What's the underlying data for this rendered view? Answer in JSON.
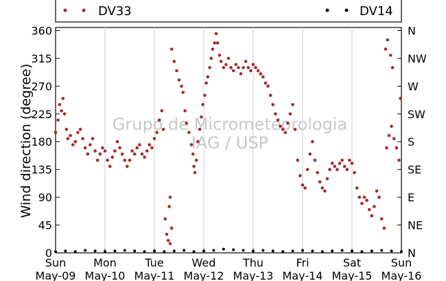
{
  "chart_data": {
    "type": "scatter",
    "title": "",
    "xlabel": "",
    "ylabel": "Wind direction (degree)",
    "ylim": [
      0,
      365
    ],
    "yticks": [
      0,
      45,
      90,
      135,
      180,
      225,
      270,
      315,
      360
    ],
    "y2_ticks": [
      {
        "value": 0,
        "label": "N"
      },
      {
        "value": 45,
        "label": "NE"
      },
      {
        "value": 90,
        "label": "E"
      },
      {
        "value": 135,
        "label": "SE"
      },
      {
        "value": 180,
        "label": "S"
      },
      {
        "value": 225,
        "label": "SW"
      },
      {
        "value": 270,
        "label": "W"
      },
      {
        "value": 315,
        "label": "NW"
      },
      {
        "value": 360,
        "label": "N"
      }
    ],
    "x_ticks": [
      {
        "day": "Sun",
        "date": "May-09"
      },
      {
        "day": "Mon",
        "date": "May-10"
      },
      {
        "day": "Tue",
        "date": "May-11"
      },
      {
        "day": "Wed",
        "date": "May-12"
      },
      {
        "day": "Thu",
        "date": "May-13"
      },
      {
        "day": "Fri",
        "date": "May-14"
      },
      {
        "day": "Sat",
        "date": "May-15"
      },
      {
        "day": "Sun",
        "date": "May-16"
      }
    ],
    "xlim_days": [
      0,
      7
    ],
    "grid": "vertical",
    "legend": "top",
    "watermark_lines": [
      "Grupo de Micrometeorologia",
      "IAG / USP"
    ],
    "series": [
      {
        "name": "DV33",
        "color": "#a52a2a",
        "points": [
          [
            0.0,
            195
          ],
          [
            0.05,
            215
          ],
          [
            0.08,
            240
          ],
          [
            0.12,
            230
          ],
          [
            0.15,
            250
          ],
          [
            0.18,
            225
          ],
          [
            0.22,
            200
          ],
          [
            0.25,
            185
          ],
          [
            0.3,
            190
          ],
          [
            0.35,
            175
          ],
          [
            0.4,
            180
          ],
          [
            0.45,
            195
          ],
          [
            0.5,
            200
          ],
          [
            0.55,
            185
          ],
          [
            0.6,
            170
          ],
          [
            0.65,
            160
          ],
          [
            0.7,
            175
          ],
          [
            0.75,
            185
          ],
          [
            0.8,
            165
          ],
          [
            0.85,
            150
          ],
          [
            0.9,
            160
          ],
          [
            0.95,
            170
          ],
          [
            1.0,
            165
          ],
          [
            1.05,
            150
          ],
          [
            1.1,
            140
          ],
          [
            1.15,
            155
          ],
          [
            1.2,
            165
          ],
          [
            1.25,
            180
          ],
          [
            1.3,
            170
          ],
          [
            1.35,
            160
          ],
          [
            1.4,
            150
          ],
          [
            1.45,
            140
          ],
          [
            1.5,
            150
          ],
          [
            1.55,
            165
          ],
          [
            1.6,
            160
          ],
          [
            1.65,
            170
          ],
          [
            1.7,
            175
          ],
          [
            1.75,
            160
          ],
          [
            1.8,
            155
          ],
          [
            1.85,
            165
          ],
          [
            1.9,
            175
          ],
          [
            1.95,
            170
          ],
          [
            2.0,
            185
          ],
          [
            2.05,
            195
          ],
          [
            2.1,
            215
          ],
          [
            2.15,
            230
          ],
          [
            2.18,
            200
          ],
          [
            2.22,
            55
          ],
          [
            2.25,
            30
          ],
          [
            2.28,
            20
          ],
          [
            2.32,
            15
          ],
          [
            2.35,
            40
          ],
          [
            2.3,
            75
          ],
          [
            2.32,
            90
          ],
          [
            2.35,
            330
          ],
          [
            2.4,
            310
          ],
          [
            2.45,
            295
          ],
          [
            2.5,
            280
          ],
          [
            2.55,
            270
          ],
          [
            2.58,
            260
          ],
          [
            2.62,
            230
          ],
          [
            2.65,
            210
          ],
          [
            2.7,
            195
          ],
          [
            2.75,
            175
          ],
          [
            2.78,
            160
          ],
          [
            2.8,
            140
          ],
          [
            2.82,
            130
          ],
          [
            2.85,
            150
          ],
          [
            2.88,
            180
          ],
          [
            2.92,
            200
          ],
          [
            2.95,
            220
          ],
          [
            2.98,
            240
          ],
          [
            3.02,
            255
          ],
          [
            3.05,
            275
          ],
          [
            3.08,
            285
          ],
          [
            3.12,
            300
          ],
          [
            3.15,
            315
          ],
          [
            3.18,
            330
          ],
          [
            3.22,
            340
          ],
          [
            3.25,
            355
          ],
          [
            3.28,
            340
          ],
          [
            3.32,
            320
          ],
          [
            3.35,
            310
          ],
          [
            3.4,
            300
          ],
          [
            3.45,
            305
          ],
          [
            3.5,
            315
          ],
          [
            3.55,
            300
          ],
          [
            3.6,
            295
          ],
          [
            3.65,
            305
          ],
          [
            3.7,
            300
          ],
          [
            3.75,
            290
          ],
          [
            3.8,
            300
          ],
          [
            3.85,
            310
          ],
          [
            3.9,
            300
          ],
          [
            3.95,
            295
          ],
          [
            4.0,
            305
          ],
          [
            4.05,
            300
          ],
          [
            4.1,
            295
          ],
          [
            4.15,
            290
          ],
          [
            4.2,
            285
          ],
          [
            4.25,
            275
          ],
          [
            4.3,
            270
          ],
          [
            4.35,
            255
          ],
          [
            4.4,
            240
          ],
          [
            4.45,
            225
          ],
          [
            4.5,
            215
          ],
          [
            4.55,
            205
          ],
          [
            4.6,
            200
          ],
          [
            4.65,
            195
          ],
          [
            4.7,
            210
          ],
          [
            4.75,
            225
          ],
          [
            4.8,
            240
          ],
          [
            4.85,
            200
          ],
          [
            4.9,
            150
          ],
          [
            4.95,
            125
          ],
          [
            5.0,
            110
          ],
          [
            5.05,
            105
          ],
          [
            5.1,
            135
          ],
          [
            5.15,
            160
          ],
          [
            5.2,
            180
          ],
          [
            5.25,
            150
          ],
          [
            5.3,
            130
          ],
          [
            5.35,
            115
          ],
          [
            5.4,
            105
          ],
          [
            5.45,
            100
          ],
          [
            5.5,
            120
          ],
          [
            5.55,
            135
          ],
          [
            5.6,
            145
          ],
          [
            5.65,
            140
          ],
          [
            5.7,
            135
          ],
          [
            5.75,
            145
          ],
          [
            5.8,
            150
          ],
          [
            5.85,
            140
          ],
          [
            5.9,
            135
          ],
          [
            5.95,
            150
          ],
          [
            6.0,
            145
          ],
          [
            6.05,
            130
          ],
          [
            6.1,
            105
          ],
          [
            6.15,
            90
          ],
          [
            6.2,
            80
          ],
          [
            6.25,
            90
          ],
          [
            6.3,
            85
          ],
          [
            6.35,
            70
          ],
          [
            6.4,
            60
          ],
          [
            6.45,
            75
          ],
          [
            6.5,
            100
          ],
          [
            6.55,
            90
          ],
          [
            6.6,
            55
          ],
          [
            6.65,
            40
          ],
          [
            6.7,
            170
          ],
          [
            6.75,
            190
          ],
          [
            6.8,
            205
          ],
          [
            6.85,
            185
          ],
          [
            6.9,
            170
          ],
          [
            6.95,
            150
          ],
          [
            6.68,
            330
          ],
          [
            6.72,
            345
          ],
          [
            6.78,
            320
          ],
          [
            6.82,
            300
          ],
          [
            6.98,
            250
          ]
        ]
      },
      {
        "name": "DV14",
        "color": "#000000",
        "points": [
          [
            0.0,
            2
          ],
          [
            0.2,
            3
          ],
          [
            0.4,
            2
          ],
          [
            0.6,
            4
          ],
          [
            0.8,
            3
          ],
          [
            1.0,
            2
          ],
          [
            1.2,
            3
          ],
          [
            1.4,
            4
          ],
          [
            1.6,
            3
          ],
          [
            1.8,
            2
          ],
          [
            2.0,
            3
          ],
          [
            2.2,
            2
          ],
          [
            2.4,
            3
          ],
          [
            2.6,
            4
          ],
          [
            2.8,
            2
          ],
          [
            3.0,
            3
          ],
          [
            3.2,
            4
          ],
          [
            3.4,
            6
          ],
          [
            3.6,
            5
          ],
          [
            3.8,
            4
          ],
          [
            4.0,
            3
          ],
          [
            4.2,
            4
          ],
          [
            4.4,
            3
          ],
          [
            4.6,
            2
          ],
          [
            4.8,
            3
          ],
          [
            5.0,
            4
          ],
          [
            5.2,
            3
          ],
          [
            5.4,
            2
          ],
          [
            5.6,
            3
          ],
          [
            5.8,
            4
          ],
          [
            6.0,
            3
          ],
          [
            6.2,
            2
          ],
          [
            6.4,
            3
          ],
          [
            6.6,
            4
          ],
          [
            6.8,
            3
          ],
          [
            7.0,
            2
          ]
        ]
      }
    ]
  }
}
